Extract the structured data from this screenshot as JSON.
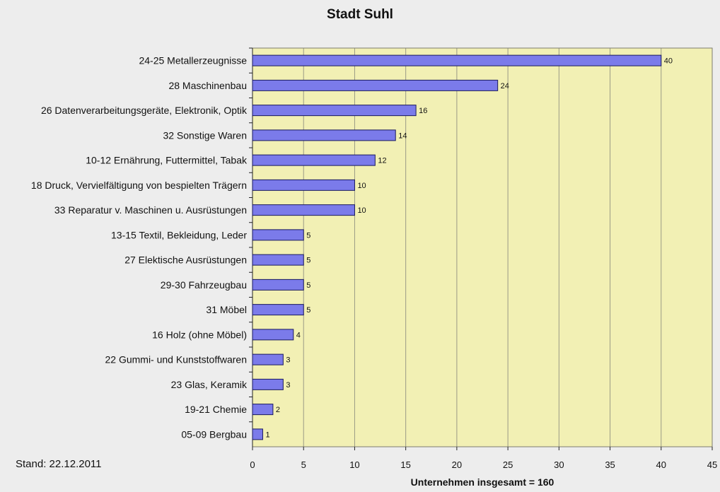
{
  "chart_data": {
    "type": "bar",
    "orientation": "horizontal",
    "title": "Stadt Suhl",
    "xlabel": "Unternehmen insgesamt = 160",
    "ylabel": "",
    "note": "Stand: 22.12.2011",
    "xlim": [
      0,
      45
    ],
    "xticks": [
      0,
      5,
      10,
      15,
      20,
      25,
      30,
      35,
      40,
      45
    ],
    "grid": true,
    "categories": [
      "24-25 Metallerzeugnisse",
      "28 Maschinenbau",
      "26 Datenverarbeitungsgeräte, Elektronik, Optik",
      "32 Sonstige Waren",
      "10-12 Ernährung, Futtermittel, Tabak",
      "18 Druck, Vervielfältigung von bespielten Trägern",
      "33 Reparatur v. Maschinen u. Ausrüstungen",
      "13-15 Textil, Bekleidung, Leder",
      "27 Elektische Ausrüstungen",
      "29-30 Fahrzeugbau",
      "31 Möbel",
      "16 Holz (ohne Möbel)",
      "22 Gummi- und Kunststoffwaren",
      "23 Glas, Keramik",
      "19-21 Chemie",
      "05-09 Bergbau"
    ],
    "values": [
      40,
      24,
      16,
      14,
      12,
      10,
      10,
      5,
      5,
      5,
      5,
      4,
      3,
      3,
      2,
      1
    ],
    "colors": {
      "bar": "#7b7bea",
      "bar_border": "#1a1a5e",
      "plot_bg": "#f2f0b4",
      "gridline": "#9a9a86"
    }
  }
}
